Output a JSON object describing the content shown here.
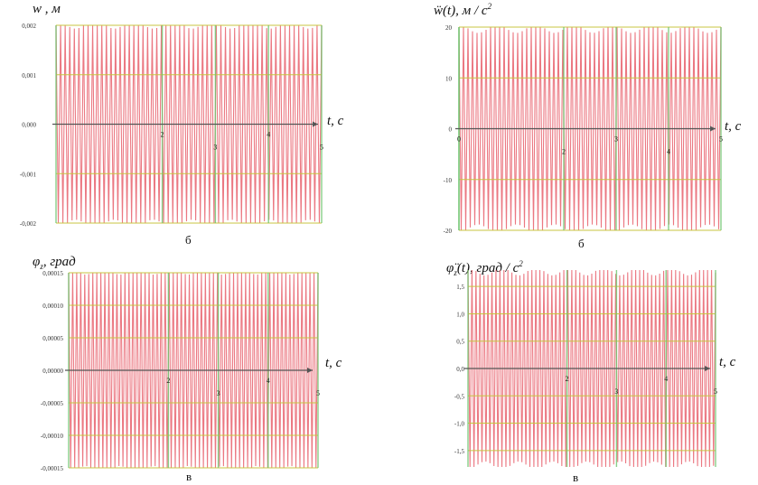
{
  "chart_data": [
    {
      "type": "line",
      "ylabel": "w , м",
      "xlabel": "t, c",
      "caption": "б",
      "xlim": [
        0,
        5
      ],
      "ylim": [
        -0.002,
        0.002
      ],
      "yticks": [
        0.002,
        0.001,
        0.0,
        -0.001,
        -0.002
      ],
      "ytick_labels": [
        "0,002",
        "0,001",
        "0,000",
        "-0,001",
        "-0,002"
      ],
      "xticks": [
        2,
        3,
        4,
        5
      ],
      "xtick_labels": [
        "2",
        "3",
        "4",
        "5"
      ],
      "series": [
        {
          "amplitude": 0.0021,
          "cycles": 58
        }
      ],
      "grid": true
    },
    {
      "type": "line",
      "ylabel": "ẅ(t), м / c",
      "ylabel_sup": "2",
      "xlabel": "t, c",
      "caption": "б",
      "xlim": [
        0,
        5
      ],
      "ylim": [
        -20,
        20
      ],
      "yticks": [
        20,
        10,
        0,
        -10,
        -20
      ],
      "ytick_labels": [
        "20",
        "10",
        "0",
        "-10",
        "-20"
      ],
      "xticks": [
        0,
        2,
        3,
        4,
        5
      ],
      "xtick_labels": [
        "0",
        "2",
        "3",
        "4",
        "5"
      ],
      "series": [
        {
          "amplitude": 20.5,
          "cycles": 58
        }
      ],
      "grid": true
    },
    {
      "type": "line",
      "ylabel": "φ",
      "ylabel_sub": "z",
      "ylabel_rest": ", град",
      "xlabel": "t, c",
      "caption": "в",
      "xlim": [
        0,
        5
      ],
      "ylim": [
        -0.00015,
        0.00015
      ],
      "yticks": [
        0.00015,
        0.0001,
        5e-05,
        0,
        -5e-05,
        -0.0001,
        -0.00015
      ],
      "ytick_labels": [
        "0,00015",
        "0,00010",
        "0,00005",
        "0,00000",
        "-0,00005",
        "-0,00010",
        "-0,00015"
      ],
      "xticks": [
        2,
        3,
        4,
        5
      ],
      "xtick_labels": [
        "2",
        "3",
        "4",
        "5"
      ],
      "series": [
        {
          "amplitude": 0.00016,
          "cycles": 62
        }
      ],
      "grid": true
    },
    {
      "type": "line",
      "ylabel": "φ̈",
      "ylabel_sub": "z",
      "ylabel_rest": "(t), град / c",
      "ylabel_sup": "2",
      "xlabel": "t, c",
      "caption": "в",
      "xlim": [
        0,
        5
      ],
      "ylim": [
        -1.8,
        1.8
      ],
      "yticks": [
        1.5,
        1.0,
        0.5,
        0.0,
        -0.5,
        -1.0,
        -1.5
      ],
      "ytick_labels": [
        "1,5",
        "1,0",
        "0,5",
        "0,0",
        "-0,5",
        "-1,0",
        "-1,5"
      ],
      "xticks": [
        2,
        3,
        4,
        5
      ],
      "xtick_labels": [
        "2",
        "3",
        "4",
        "5"
      ],
      "series": [
        {
          "amplitude": 1.85,
          "cycles": 62
        }
      ],
      "grid": true
    }
  ],
  "colors": {
    "curve": "#e8606c",
    "grid": "#c8c440",
    "axis": "#555555",
    "edge": "#6cc46c"
  }
}
